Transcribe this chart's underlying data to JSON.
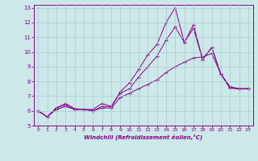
{
  "xlabel": "Windchill (Refroidissement éolien,°C)",
  "bg_color": "#cce8e8",
  "grid_color": "#aacccc",
  "line_color": "#880088",
  "xlim": [
    -0.5,
    23.5
  ],
  "ylim": [
    5,
    13.2
  ],
  "xticks": [
    0,
    1,
    2,
    3,
    4,
    5,
    6,
    7,
    8,
    9,
    10,
    11,
    12,
    13,
    14,
    15,
    16,
    17,
    18,
    19,
    20,
    21,
    22,
    23
  ],
  "yticks": [
    5,
    6,
    7,
    8,
    9,
    10,
    11,
    12,
    13
  ],
  "line1_x": [
    0,
    1,
    2,
    3,
    4,
    5,
    6,
    7,
    8,
    9,
    10,
    11,
    12,
    13,
    14,
    15,
    16,
    17,
    18,
    19,
    20,
    21,
    22,
    23
  ],
  "line1_y": [
    6.0,
    5.6,
    6.2,
    6.5,
    6.15,
    6.1,
    6.1,
    6.5,
    6.3,
    7.3,
    7.9,
    8.8,
    9.8,
    10.5,
    12.0,
    13.0,
    10.65,
    11.85,
    9.5,
    10.3,
    8.5,
    7.55,
    7.5,
    7.5
  ],
  "line2_x": [
    0,
    1,
    2,
    3,
    4,
    5,
    6,
    7,
    8,
    9,
    10,
    11,
    12,
    13,
    14,
    15,
    16,
    17,
    18,
    19,
    20,
    21,
    22,
    23
  ],
  "line2_y": [
    6.0,
    5.6,
    6.2,
    6.4,
    6.1,
    6.1,
    6.0,
    6.3,
    6.3,
    7.2,
    7.5,
    8.3,
    9.0,
    9.7,
    10.8,
    11.7,
    10.65,
    11.6,
    9.5,
    10.3,
    8.5,
    7.55,
    7.5,
    7.5
  ],
  "line3_x": [
    0,
    1,
    2,
    3,
    4,
    5,
    6,
    7,
    8,
    9,
    10,
    11,
    12,
    13,
    14,
    15,
    16,
    17,
    18,
    19,
    20,
    21,
    22,
    23
  ],
  "line3_y": [
    6.0,
    5.6,
    6.1,
    6.3,
    6.1,
    6.1,
    6.0,
    6.2,
    6.2,
    6.9,
    7.2,
    7.5,
    7.8,
    8.1,
    8.6,
    9.0,
    9.3,
    9.6,
    9.65,
    9.9,
    8.5,
    7.65,
    7.5,
    7.5
  ]
}
